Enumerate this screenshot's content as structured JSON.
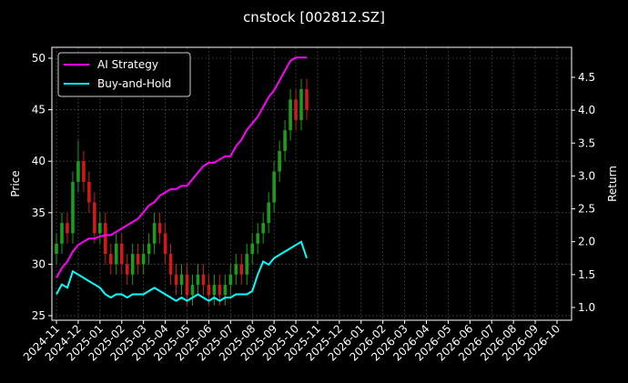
{
  "chart_data": {
    "type": "candlestick",
    "title": "cnstock [002812.SZ]",
    "ylabel": "Price",
    "y2label": "Return",
    "x": [
      0,
      0.25,
      0.5,
      0.75,
      1,
      1.25,
      1.5,
      1.75,
      2,
      2.25,
      2.5,
      2.75,
      3,
      3.25,
      3.5,
      3.75,
      4,
      4.25,
      4.5,
      4.75,
      5,
      5.25,
      5.5,
      5.75,
      6,
      6.25,
      6.5,
      6.75,
      7,
      7.25,
      7.5,
      7.75,
      8,
      8.25,
      8.5,
      8.75,
      9,
      9.25,
      9.5,
      9.75,
      10,
      10.25,
      10.5,
      10.75,
      11,
      11.25,
      11.5
    ],
    "open": [
      31,
      32,
      34,
      33,
      38,
      40,
      38,
      36,
      33,
      34,
      31,
      30,
      32,
      30,
      29,
      31,
      30,
      31,
      32,
      34,
      33,
      31,
      29,
      28,
      29,
      27,
      28,
      29,
      28,
      27,
      28,
      27,
      28,
      29,
      30,
      29,
      31,
      32,
      33,
      34,
      36,
      39,
      41,
      43,
      46,
      44,
      47
    ],
    "high": [
      33,
      35,
      35,
      39,
      42,
      41,
      39,
      37,
      35,
      35,
      32,
      33,
      33,
      31,
      32,
      32,
      32,
      33,
      35,
      35,
      34,
      32,
      30,
      30,
      30,
      29,
      30,
      30,
      29,
      29,
      29,
      29,
      30,
      31,
      31,
      32,
      33,
      34,
      35,
      37,
      40,
      42,
      44,
      47,
      47,
      48,
      48
    ],
    "low": [
      30,
      31,
      32,
      32,
      37,
      37,
      35,
      32,
      32,
      30,
      29,
      29,
      29,
      28,
      28,
      29,
      29,
      30,
      31,
      32,
      30,
      28,
      27,
      27,
      26,
      26,
      27,
      27,
      26,
      26,
      26,
      26,
      27,
      28,
      28,
      28,
      30,
      31,
      32,
      33,
      35,
      38,
      40,
      42,
      43,
      43,
      44
    ],
    "close": [
      32,
      34,
      33,
      38,
      40,
      38,
      36,
      33,
      34,
      31,
      30,
      32,
      30,
      29,
      31,
      30,
      31,
      32,
      34,
      33,
      31,
      29,
      28,
      29,
      27,
      28,
      29,
      28,
      27,
      28,
      27,
      28,
      29,
      30,
      29,
      31,
      32,
      33,
      34,
      36,
      39,
      41,
      43,
      46,
      44,
      47,
      45
    ],
    "up_color": "#1a9e1a",
    "down_color": "#d01a1a",
    "series": [
      {
        "name": "AI Strategy",
        "color": "#ff00ff",
        "axis": "y2",
        "values": [
          1.45,
          1.6,
          1.7,
          1.85,
          1.95,
          2.0,
          2.05,
          2.05,
          2.08,
          2.1,
          2.1,
          2.15,
          2.2,
          2.25,
          2.3,
          2.35,
          2.45,
          2.55,
          2.6,
          2.7,
          2.75,
          2.8,
          2.8,
          2.85,
          2.85,
          2.95,
          3.05,
          3.15,
          3.2,
          3.2,
          3.25,
          3.3,
          3.3,
          3.45,
          3.55,
          3.7,
          3.8,
          3.9,
          4.05,
          4.2,
          4.3,
          4.45,
          4.6,
          4.75,
          4.8,
          4.8,
          4.8
        ]
      },
      {
        "name": "Buy-and-Hold",
        "color": "#00ffff",
        "axis": "y2",
        "values": [
          1.2,
          1.35,
          1.3,
          1.55,
          1.5,
          1.45,
          1.4,
          1.35,
          1.3,
          1.2,
          1.15,
          1.2,
          1.2,
          1.15,
          1.2,
          1.2,
          1.2,
          1.25,
          1.3,
          1.25,
          1.2,
          1.15,
          1.1,
          1.15,
          1.1,
          1.15,
          1.2,
          1.15,
          1.1,
          1.15,
          1.1,
          1.15,
          1.15,
          1.2,
          1.2,
          1.2,
          1.25,
          1.5,
          1.7,
          1.65,
          1.75,
          1.8,
          1.85,
          1.9,
          1.95,
          2.0,
          1.75
        ]
      }
    ],
    "xlim": [
      -0.21,
      23.67
    ],
    "xticks": [
      {
        "value": 0,
        "label": "2024-11"
      },
      {
        "value": 1,
        "label": "2024-12"
      },
      {
        "value": 2,
        "label": "2025-01"
      },
      {
        "value": 3,
        "label": "2025-02"
      },
      {
        "value": 4,
        "label": "2025-03"
      },
      {
        "value": 5,
        "label": "2025-04"
      },
      {
        "value": 6,
        "label": "2025-05"
      },
      {
        "value": 7,
        "label": "2025-06"
      },
      {
        "value": 8,
        "label": "2025-07"
      },
      {
        "value": 9,
        "label": "2025-08"
      },
      {
        "value": 10,
        "label": "2025-09"
      },
      {
        "value": 11,
        "label": "2025-10"
      },
      {
        "value": 12,
        "label": "2025-11"
      },
      {
        "value": 13,
        "label": "2025-12"
      },
      {
        "value": 14,
        "label": "2026-01"
      },
      {
        "value": 15,
        "label": "2026-02"
      },
      {
        "value": 16,
        "label": "2026-03"
      },
      {
        "value": 17,
        "label": "2026-04"
      },
      {
        "value": 18,
        "label": "2026-05"
      },
      {
        "value": 19,
        "label": "2026-06"
      },
      {
        "value": 20,
        "label": "2026-07"
      },
      {
        "value": 21,
        "label": "2026-08"
      },
      {
        "value": 22,
        "label": "2026-09"
      },
      {
        "value": 23,
        "label": "2026-10"
      }
    ],
    "ylim": [
      24.56,
      51.06
    ],
    "yticks": [
      25,
      30,
      35,
      40,
      45,
      50
    ],
    "y2lim": [
      0.806,
      4.956
    ],
    "y2ticks": [
      {
        "value": 1,
        "label": "1.0"
      },
      {
        "value": 1.5,
        "label": "1.5"
      },
      {
        "value": 2,
        "label": "2.0"
      },
      {
        "value": 2.5,
        "label": "2.5"
      },
      {
        "value": 3,
        "label": "3.0"
      },
      {
        "value": 3.5,
        "label": "3.5"
      },
      {
        "value": 4,
        "label": "4.0"
      },
      {
        "value": 4.5,
        "label": "4.5"
      }
    ],
    "grid": true,
    "legend": "upper left"
  }
}
